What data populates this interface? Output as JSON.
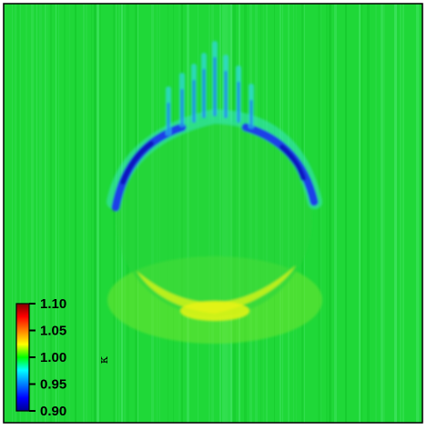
{
  "chart_data": {
    "type": "heatmap",
    "title": "",
    "xlabel": "",
    "ylabel": "",
    "axes_ticks_shown": false,
    "field_description": "ratio map around 1.00 with a circular feature: depressed (blue) upper rim arc, enhanced (yellow) lower crescent",
    "background_value": 1.0,
    "upper_arc_min_value": 0.9,
    "lower_crescent_max_value": 1.05,
    "colormap": [
      "#00008f",
      "#0000ff",
      "#00ffff",
      "#00ff00",
      "#ffff00",
      "#ff0000",
      "#800000"
    ],
    "colorbar": {
      "label": "κ",
      "ticks": [
        "0.90",
        "0.95",
        "1.00",
        "1.05",
        "1.10"
      ],
      "tick_values": [
        0.9,
        0.95,
        1.0,
        1.05,
        1.1
      ],
      "range": [
        0.9,
        1.1
      ],
      "placement": "bottom-left inside plot"
    }
  }
}
